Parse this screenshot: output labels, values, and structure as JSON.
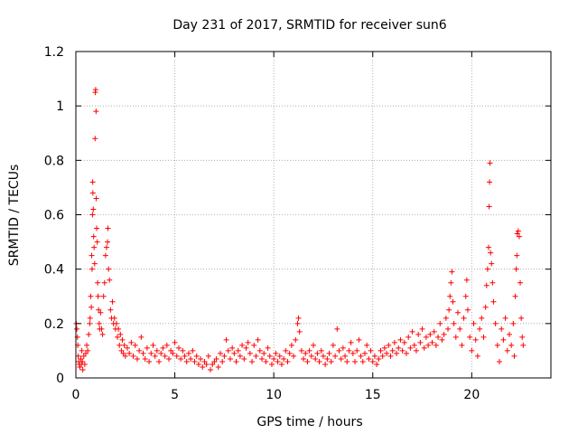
{
  "chart_data": {
    "type": "scatter",
    "title": "Day 231 of 2017, SRMTID for receiver sun6",
    "xlabel": "GPS time / hours",
    "ylabel": "SRMTID / TECUs",
    "xlim": [
      0,
      24
    ],
    "ylim": [
      0,
      1.2
    ],
    "x_ticks": [
      0,
      5,
      10,
      15,
      20
    ],
    "x_tick_labels": [
      "0",
      "5",
      "10",
      "15",
      "20"
    ],
    "y_ticks": [
      0,
      0.2,
      0.4,
      0.6,
      0.8,
      1.0,
      1.2
    ],
    "y_tick_labels": [
      "0",
      "0.2",
      "0.4",
      "0.6",
      "0.8",
      "1",
      "1.2"
    ],
    "grid": true,
    "marker": "+",
    "marker_color": "#ff0000",
    "series": [
      {
        "name": "SRMTID",
        "points": [
          [
            0.02,
            0.2
          ],
          [
            0.05,
            0.18
          ],
          [
            0.08,
            0.15
          ],
          [
            0.1,
            0.12
          ],
          [
            0.12,
            0.08
          ],
          [
            0.15,
            0.06
          ],
          [
            0.18,
            0.05
          ],
          [
            0.2,
            0.04
          ],
          [
            0.25,
            0.07
          ],
          [
            0.28,
            0.05
          ],
          [
            0.3,
            0.1
          ],
          [
            0.33,
            0.06
          ],
          [
            0.35,
            0.03
          ],
          [
            0.4,
            0.08
          ],
          [
            0.45,
            0.05
          ],
          [
            0.5,
            0.09
          ],
          [
            0.55,
            0.12
          ],
          [
            0.6,
            0.1
          ],
          [
            0.65,
            0.16
          ],
          [
            0.7,
            0.2
          ],
          [
            0.72,
            0.22
          ],
          [
            0.75,
            0.3
          ],
          [
            0.78,
            0.26
          ],
          [
            0.8,
            0.45
          ],
          [
            0.82,
            0.4
          ],
          [
            0.84,
            0.6
          ],
          [
            0.85,
            0.72
          ],
          [
            0.86,
            0.68
          ],
          [
            0.88,
            0.62
          ],
          [
            0.9,
            0.52
          ],
          [
            0.92,
            0.48
          ],
          [
            0.95,
            0.42
          ],
          [
            0.97,
            0.88
          ],
          [
            0.98,
            1.05
          ],
          [
            1.0,
            1.06
          ],
          [
            1.02,
            0.98
          ],
          [
            1.03,
            0.66
          ],
          [
            1.05,
            0.55
          ],
          [
            1.08,
            0.5
          ],
          [
            1.1,
            0.35
          ],
          [
            1.12,
            0.3
          ],
          [
            1.15,
            0.25
          ],
          [
            1.18,
            0.2
          ],
          [
            1.2,
            0.18
          ],
          [
            1.25,
            0.24
          ],
          [
            1.3,
            0.18
          ],
          [
            1.35,
            0.16
          ],
          [
            1.4,
            0.3
          ],
          [
            1.45,
            0.35
          ],
          [
            1.5,
            0.45
          ],
          [
            1.55,
            0.48
          ],
          [
            1.6,
            0.5
          ],
          [
            1.62,
            0.55
          ],
          [
            1.65,
            0.4
          ],
          [
            1.7,
            0.36
          ],
          [
            1.75,
            0.25
          ],
          [
            1.8,
            0.22
          ],
          [
            1.85,
            0.28
          ],
          [
            1.9,
            0.2
          ],
          [
            1.95,
            0.22
          ],
          [
            2.0,
            0.18
          ],
          [
            2.05,
            0.2
          ],
          [
            2.1,
            0.15
          ],
          [
            2.15,
            0.18
          ],
          [
            2.2,
            0.12
          ],
          [
            2.25,
            0.16
          ],
          [
            2.3,
            0.1
          ],
          [
            2.35,
            0.14
          ],
          [
            2.4,
            0.09
          ],
          [
            2.45,
            0.12
          ],
          [
            2.5,
            0.08
          ],
          [
            2.6,
            0.11
          ],
          [
            2.7,
            0.09
          ],
          [
            2.8,
            0.13
          ],
          [
            2.9,
            0.08
          ],
          [
            3.0,
            0.12
          ],
          [
            3.1,
            0.07
          ],
          [
            3.2,
            0.1
          ],
          [
            3.3,
            0.15
          ],
          [
            3.4,
            0.09
          ],
          [
            3.5,
            0.07
          ],
          [
            3.6,
            0.11
          ],
          [
            3.7,
            0.06
          ],
          [
            3.8,
            0.09
          ],
          [
            3.9,
            0.12
          ],
          [
            4.0,
            0.08
          ],
          [
            4.1,
            0.1
          ],
          [
            4.2,
            0.06
          ],
          [
            4.3,
            0.09
          ],
          [
            4.4,
            0.11
          ],
          [
            4.5,
            0.08
          ],
          [
            4.6,
            0.12
          ],
          [
            4.7,
            0.07
          ],
          [
            4.8,
            0.1
          ],
          [
            4.9,
            0.09
          ],
          [
            5.0,
            0.13
          ],
          [
            5.1,
            0.08
          ],
          [
            5.2,
            0.11
          ],
          [
            5.3,
            0.07
          ],
          [
            5.4,
            0.1
          ],
          [
            5.5,
            0.08
          ],
          [
            5.6,
            0.06
          ],
          [
            5.7,
            0.09
          ],
          [
            5.8,
            0.07
          ],
          [
            5.9,
            0.1
          ],
          [
            6.0,
            0.06
          ],
          [
            6.1,
            0.08
          ],
          [
            6.2,
            0.05
          ],
          [
            6.3,
            0.07
          ],
          [
            6.4,
            0.04
          ],
          [
            6.5,
            0.06
          ],
          [
            6.6,
            0.05
          ],
          [
            6.7,
            0.08
          ],
          [
            6.8,
            0.03
          ],
          [
            6.9,
            0.05
          ],
          [
            7.0,
            0.06
          ],
          [
            7.1,
            0.07
          ],
          [
            7.2,
            0.04
          ],
          [
            7.3,
            0.09
          ],
          [
            7.4,
            0.06
          ],
          [
            7.5,
            0.08
          ],
          [
            7.6,
            0.14
          ],
          [
            7.7,
            0.1
          ],
          [
            7.8,
            0.07
          ],
          [
            7.9,
            0.11
          ],
          [
            8.0,
            0.09
          ],
          [
            8.1,
            0.06
          ],
          [
            8.2,
            0.1
          ],
          [
            8.3,
            0.08
          ],
          [
            8.4,
            0.12
          ],
          [
            8.5,
            0.07
          ],
          [
            8.6,
            0.11
          ],
          [
            8.7,
            0.13
          ],
          [
            8.8,
            0.09
          ],
          [
            8.9,
            0.06
          ],
          [
            9.0,
            0.12
          ],
          [
            9.1,
            0.08
          ],
          [
            9.2,
            0.14
          ],
          [
            9.3,
            0.1
          ],
          [
            9.4,
            0.07
          ],
          [
            9.5,
            0.09
          ],
          [
            9.6,
            0.06
          ],
          [
            9.7,
            0.11
          ],
          [
            9.8,
            0.08
          ],
          [
            9.9,
            0.05
          ],
          [
            10.0,
            0.07
          ],
          [
            10.1,
            0.09
          ],
          [
            10.2,
            0.06
          ],
          [
            10.3,
            0.08
          ],
          [
            10.4,
            0.05
          ],
          [
            10.5,
            0.07
          ],
          [
            10.6,
            0.1
          ],
          [
            10.7,
            0.06
          ],
          [
            10.8,
            0.09
          ],
          [
            10.9,
            0.12
          ],
          [
            11.0,
            0.08
          ],
          [
            11.1,
            0.14
          ],
          [
            11.2,
            0.2
          ],
          [
            11.25,
            0.22
          ],
          [
            11.3,
            0.17
          ],
          [
            11.4,
            0.1
          ],
          [
            11.5,
            0.07
          ],
          [
            11.6,
            0.09
          ],
          [
            11.7,
            0.06
          ],
          [
            11.8,
            0.1
          ],
          [
            11.9,
            0.08
          ],
          [
            12.0,
            0.12
          ],
          [
            12.1,
            0.07
          ],
          [
            12.2,
            0.09
          ],
          [
            12.3,
            0.06
          ],
          [
            12.4,
            0.1
          ],
          [
            12.5,
            0.08
          ],
          [
            12.6,
            0.05
          ],
          [
            12.7,
            0.07
          ],
          [
            12.8,
            0.09
          ],
          [
            12.9,
            0.06
          ],
          [
            13.0,
            0.12
          ],
          [
            13.1,
            0.08
          ],
          [
            13.2,
            0.18
          ],
          [
            13.3,
            0.1
          ],
          [
            13.4,
            0.07
          ],
          [
            13.5,
            0.11
          ],
          [
            13.6,
            0.08
          ],
          [
            13.7,
            0.06
          ],
          [
            13.8,
            0.1
          ],
          [
            13.9,
            0.13
          ],
          [
            14.0,
            0.09
          ],
          [
            14.1,
            0.06
          ],
          [
            14.2,
            0.1
          ],
          [
            14.3,
            0.14
          ],
          [
            14.4,
            0.08
          ],
          [
            14.5,
            0.06
          ],
          [
            14.6,
            0.09
          ],
          [
            14.7,
            0.12
          ],
          [
            14.8,
            0.07
          ],
          [
            14.9,
            0.1
          ],
          [
            15.0,
            0.06
          ],
          [
            15.1,
            0.08
          ],
          [
            15.2,
            0.05
          ],
          [
            15.3,
            0.07
          ],
          [
            15.4,
            0.1
          ],
          [
            15.5,
            0.08
          ],
          [
            15.6,
            0.11
          ],
          [
            15.7,
            0.09
          ],
          [
            15.8,
            0.12
          ],
          [
            15.9,
            0.08
          ],
          [
            16.0,
            0.1
          ],
          [
            16.1,
            0.13
          ],
          [
            16.2,
            0.09
          ],
          [
            16.3,
            0.11
          ],
          [
            16.4,
            0.14
          ],
          [
            16.5,
            0.1
          ],
          [
            16.6,
            0.13
          ],
          [
            16.7,
            0.09
          ],
          [
            16.8,
            0.15
          ],
          [
            16.9,
            0.11
          ],
          [
            17.0,
            0.17
          ],
          [
            17.1,
            0.12
          ],
          [
            17.2,
            0.1
          ],
          [
            17.3,
            0.16
          ],
          [
            17.4,
            0.13
          ],
          [
            17.5,
            0.18
          ],
          [
            17.6,
            0.11
          ],
          [
            17.7,
            0.15
          ],
          [
            17.8,
            0.12
          ],
          [
            17.9,
            0.16
          ],
          [
            18.0,
            0.13
          ],
          [
            18.1,
            0.17
          ],
          [
            18.2,
            0.12
          ],
          [
            18.3,
            0.15
          ],
          [
            18.4,
            0.2
          ],
          [
            18.5,
            0.14
          ],
          [
            18.6,
            0.16
          ],
          [
            18.7,
            0.22
          ],
          [
            18.8,
            0.18
          ],
          [
            18.85,
            0.25
          ],
          [
            18.9,
            0.3
          ],
          [
            18.95,
            0.35
          ],
          [
            19.0,
            0.39
          ],
          [
            19.05,
            0.28
          ],
          [
            19.1,
            0.2
          ],
          [
            19.2,
            0.15
          ],
          [
            19.3,
            0.24
          ],
          [
            19.4,
            0.18
          ],
          [
            19.5,
            0.12
          ],
          [
            19.6,
            0.22
          ],
          [
            19.7,
            0.3
          ],
          [
            19.75,
            0.36
          ],
          [
            19.8,
            0.25
          ],
          [
            19.9,
            0.15
          ],
          [
            20.0,
            0.1
          ],
          [
            20.1,
            0.2
          ],
          [
            20.2,
            0.14
          ],
          [
            20.3,
            0.08
          ],
          [
            20.4,
            0.18
          ],
          [
            20.5,
            0.22
          ],
          [
            20.6,
            0.15
          ],
          [
            20.7,
            0.26
          ],
          [
            20.75,
            0.34
          ],
          [
            20.8,
            0.4
          ],
          [
            20.85,
            0.48
          ],
          [
            20.88,
            0.63
          ],
          [
            20.9,
            0.72
          ],
          [
            20.92,
            0.79
          ],
          [
            20.95,
            0.46
          ],
          [
            21.0,
            0.42
          ],
          [
            21.05,
            0.35
          ],
          [
            21.1,
            0.28
          ],
          [
            21.2,
            0.2
          ],
          [
            21.3,
            0.12
          ],
          [
            21.4,
            0.06
          ],
          [
            21.5,
            0.18
          ],
          [
            21.6,
            0.14
          ],
          [
            21.7,
            0.22
          ],
          [
            21.8,
            0.1
          ],
          [
            21.9,
            0.16
          ],
          [
            22.0,
            0.12
          ],
          [
            22.1,
            0.2
          ],
          [
            22.15,
            0.08
          ],
          [
            22.2,
            0.3
          ],
          [
            22.25,
            0.4
          ],
          [
            22.28,
            0.45
          ],
          [
            22.3,
            0.53
          ],
          [
            22.35,
            0.54
          ],
          [
            22.4,
            0.52
          ],
          [
            22.45,
            0.35
          ],
          [
            22.5,
            0.22
          ],
          [
            22.55,
            0.15
          ],
          [
            22.6,
            0.12
          ]
        ]
      }
    ]
  }
}
